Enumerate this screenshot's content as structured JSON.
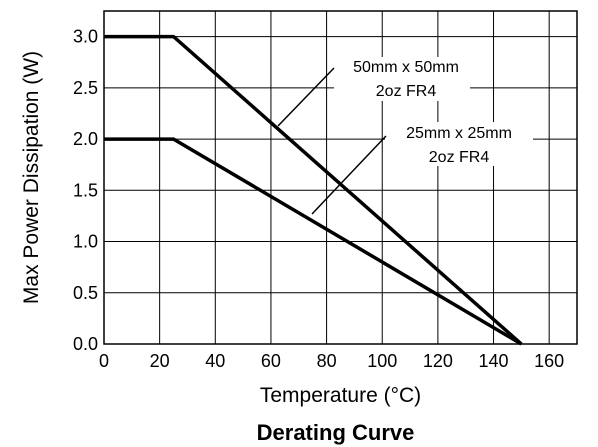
{
  "chart_data": {
    "type": "line",
    "title": "Derating Curve",
    "xlabel": "Temperature (°C)",
    "ylabel": "Max Power Dissipation (W)",
    "xlim": [
      0,
      170
    ],
    "ylim": [
      0,
      3.25
    ],
    "xticks": [
      0,
      20,
      40,
      60,
      80,
      100,
      120,
      140,
      160
    ],
    "xtick_labels": [
      "0",
      "20",
      "40",
      "60",
      "80",
      "100",
      "120",
      "140",
      "160"
    ],
    "xgrid": [
      0,
      20,
      40,
      60,
      80,
      100,
      120,
      140,
      160,
      170
    ],
    "yticks": [
      0,
      0.5,
      1.0,
      1.5,
      2.0,
      2.5,
      3.0
    ],
    "ytick_labels": [
      "0.0",
      "0.5",
      "1.0",
      "1.5",
      "2.0",
      "2.5",
      "3.0"
    ],
    "grid": true,
    "series": [
      {
        "name": "50mm x 50mm 2oz FR4",
        "label_lines": [
          "50mm x 50mm",
          "2oz FR4"
        ],
        "x": [
          0,
          25,
          150
        ],
        "y": [
          3.0,
          3.0,
          0.0
        ]
      },
      {
        "name": "25mm x 25mm 2oz FR4",
        "label_lines": [
          "25mm x 25mm",
          "2oz FR4"
        ],
        "x": [
          0,
          25,
          150
        ],
        "y": [
          2.0,
          2.0,
          0.0
        ]
      }
    ]
  }
}
